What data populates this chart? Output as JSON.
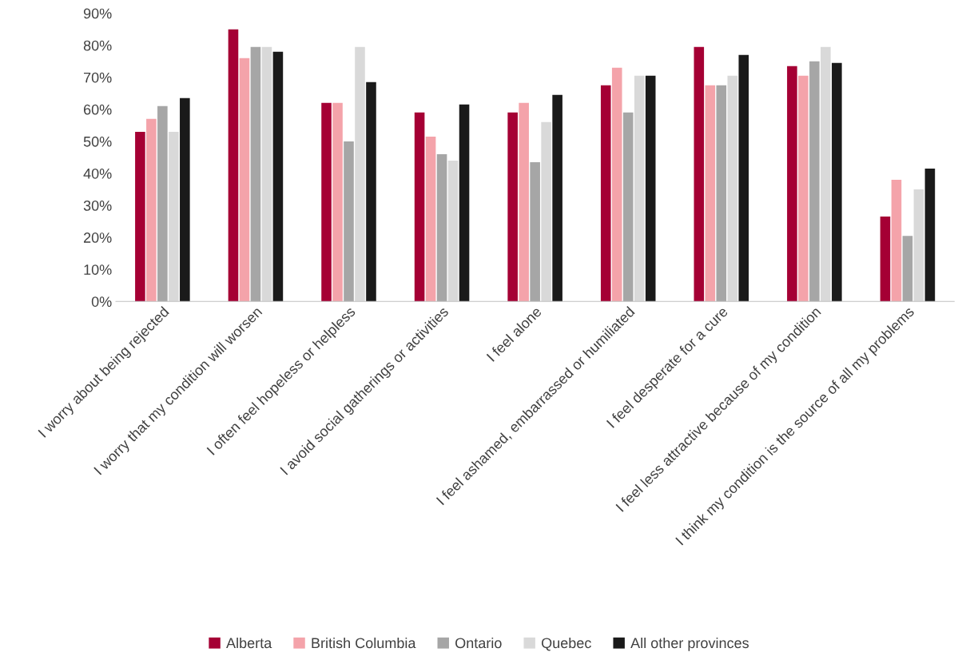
{
  "chart_data": {
    "type": "bar",
    "categories": [
      "I worry about being rejected",
      "I worry that my condition will worsen",
      "I often feel hopeless or helpless",
      "I avoid social gatherings or activities",
      "I feel alone",
      "I feel ashamed, embarrassed or humiliated",
      "I feel desperate for a cure",
      "I feel less attractive because of my condition",
      "I think my condition is the source of all my problems"
    ],
    "series": [
      {
        "name": "Alberta",
        "color": "#a50034",
        "values": [
          53,
          85,
          62,
          59,
          59,
          67.5,
          79.5,
          73.5,
          26.5
        ]
      },
      {
        "name": "British Columbia",
        "color": "#f4a3aa",
        "values": [
          57,
          76,
          62,
          51.5,
          62,
          73,
          67.5,
          70.5,
          38
        ]
      },
      {
        "name": "Ontario",
        "color": "#a6a6a6",
        "values": [
          61,
          79.5,
          50,
          46,
          43.5,
          59,
          67.5,
          75,
          20.5
        ]
      },
      {
        "name": "Quebec",
        "color": "#d9d9d9",
        "values": [
          53,
          79.5,
          79.5,
          44,
          56,
          70.5,
          70.5,
          79.5,
          35
        ]
      },
      {
        "name": "All other provinces",
        "color": "#1a1a1a",
        "values": [
          63.5,
          78,
          68.5,
          61.5,
          64.5,
          70.5,
          77,
          74.5,
          41.5
        ]
      }
    ],
    "ylim": [
      0,
      90
    ],
    "yticks": [
      {
        "value": 0,
        "label": "0%"
      },
      {
        "value": 10,
        "label": "10%"
      },
      {
        "value": 20,
        "label": "20%"
      },
      {
        "value": 30,
        "label": "30%"
      },
      {
        "value": 40,
        "label": "40%"
      },
      {
        "value": 50,
        "label": "50%"
      },
      {
        "value": 60,
        "label": "60%"
      },
      {
        "value": 70,
        "label": "70%"
      },
      {
        "value": 80,
        "label": "80%"
      },
      {
        "value": 90,
        "label": "90%"
      }
    ],
    "grid": false,
    "legend": "bottom"
  }
}
